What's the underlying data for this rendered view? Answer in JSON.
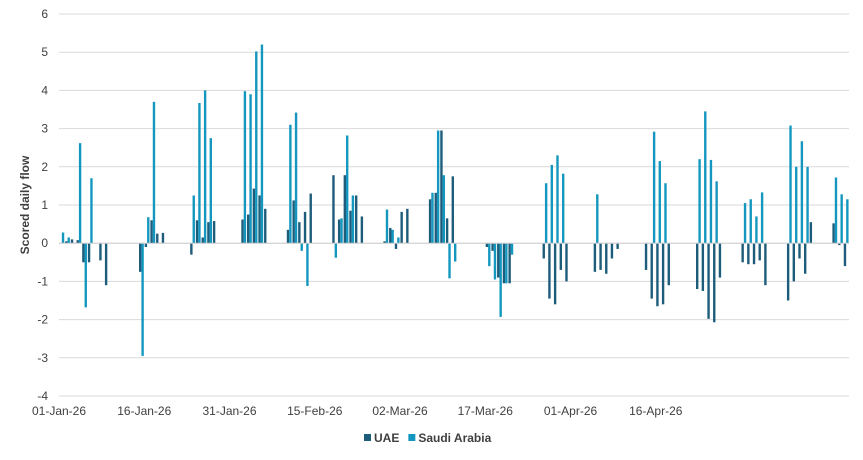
{
  "chart_data": {
    "type": "bar",
    "title": "",
    "xlabel": "",
    "ylabel": "Scored daily flow",
    "ylim": [
      -4,
      6
    ],
    "yticks": [
      -4,
      -3,
      -2,
      -1,
      0,
      1,
      2,
      3,
      4,
      5,
      6
    ],
    "grid": true,
    "legend_position": "bottom",
    "x_start": "01-Jan-26",
    "x_end": "30-Apr-26",
    "xticks": [
      "01-Jan-26",
      "16-Jan-26",
      "31-Jan-26",
      "15-Feb-26",
      "02-Mar-26",
      "17-Mar-26",
      "01-Apr-26",
      "16-Apr-26"
    ],
    "colors": {
      "UAE": "#1d5c7a",
      "Saudi Arabia": "#1497bf"
    },
    "series": [
      {
        "name": "UAE",
        "values": [
          0,
          0.05,
          0.1,
          0.08,
          -0.5,
          -0.5,
          0.0,
          -0.45,
          -1.1,
          0,
          0,
          0,
          0,
          0,
          -0.75,
          -0.1,
          0.6,
          0.25,
          0.27,
          0,
          0,
          0,
          0,
          -0.3,
          0.6,
          0.15,
          0.55,
          0.58,
          0,
          0,
          0,
          0,
          0.62,
          0.75,
          1.43,
          1.25,
          0.9,
          0,
          0,
          0,
          0.35,
          1.12,
          0.55,
          0.82,
          1.3,
          0,
          0,
          0,
          1.78,
          0.62,
          1.78,
          0.85,
          1.25,
          0.7,
          0,
          0,
          0,
          0.05,
          0.4,
          -0.15,
          0.82,
          0.9,
          0,
          0,
          0,
          1.15,
          1.32,
          2.95,
          0.65,
          1.75,
          0,
          0,
          0,
          0,
          0,
          -0.1,
          -0.2,
          -0.9,
          -1.05,
          -1.05,
          0,
          0,
          0,
          0,
          0,
          -0.4,
          -1.45,
          -1.6,
          -0.7,
          -1.0,
          0,
          0,
          0,
          0,
          -0.75,
          -0.7,
          -0.8,
          -0.4,
          -0.15,
          0,
          0,
          0,
          0,
          -0.7,
          -1.45,
          -1.65,
          -1.6,
          -1.1,
          0,
          0,
          0,
          0,
          -1.2,
          -1.25,
          -1.98,
          -2.07,
          -0.9,
          0,
          0,
          0,
          -0.5,
          -0.55,
          -0.55,
          -0.45,
          -1.1,
          0,
          0,
          0,
          -1.5,
          -1.0,
          -0.4,
          -0.8,
          0.55,
          0,
          0,
          0,
          0.52,
          -0.05,
          -0.6
        ]
      },
      {
        "name": "Saudi Arabia",
        "values": [
          0.28,
          0.15,
          0,
          2.62,
          -1.68,
          1.7,
          0,
          0,
          0,
          0,
          0,
          0,
          0,
          0,
          -2.95,
          0.68,
          3.7,
          0,
          0,
          0,
          0,
          0,
          0,
          1.25,
          3.67,
          4.0,
          2.75,
          0,
          0,
          0,
          0,
          0,
          3.98,
          3.9,
          5.02,
          5.2,
          0,
          0,
          0,
          0,
          3.1,
          3.42,
          -0.2,
          -1.12,
          0,
          0,
          0,
          0,
          -0.38,
          0.65,
          2.82,
          1.25,
          0,
          0,
          0,
          0,
          0,
          0.88,
          0.35,
          0.15,
          0,
          0,
          0,
          0,
          0,
          1.32,
          2.95,
          1.78,
          -0.92,
          -0.48,
          0,
          0,
          0,
          0,
          0,
          -0.6,
          -0.95,
          -1.93,
          -1.05,
          -0.3,
          0,
          0,
          0,
          0,
          0,
          1.57,
          2.05,
          2.3,
          1.82,
          0,
          0,
          0,
          0,
          0,
          1.28,
          0,
          0,
          0,
          0,
          0,
          0,
          0,
          0,
          0,
          2.92,
          2.15,
          1.57,
          0,
          0,
          0,
          0,
          0,
          2.2,
          3.45,
          2.18,
          1.62,
          0,
          0,
          0,
          0,
          1.05,
          1.15,
          0.7,
          1.33,
          0,
          0,
          0,
          0,
          3.08,
          2.0,
          2.67,
          2.0,
          0,
          0,
          0,
          0,
          1.72,
          1.28,
          1.15
        ]
      }
    ]
  }
}
